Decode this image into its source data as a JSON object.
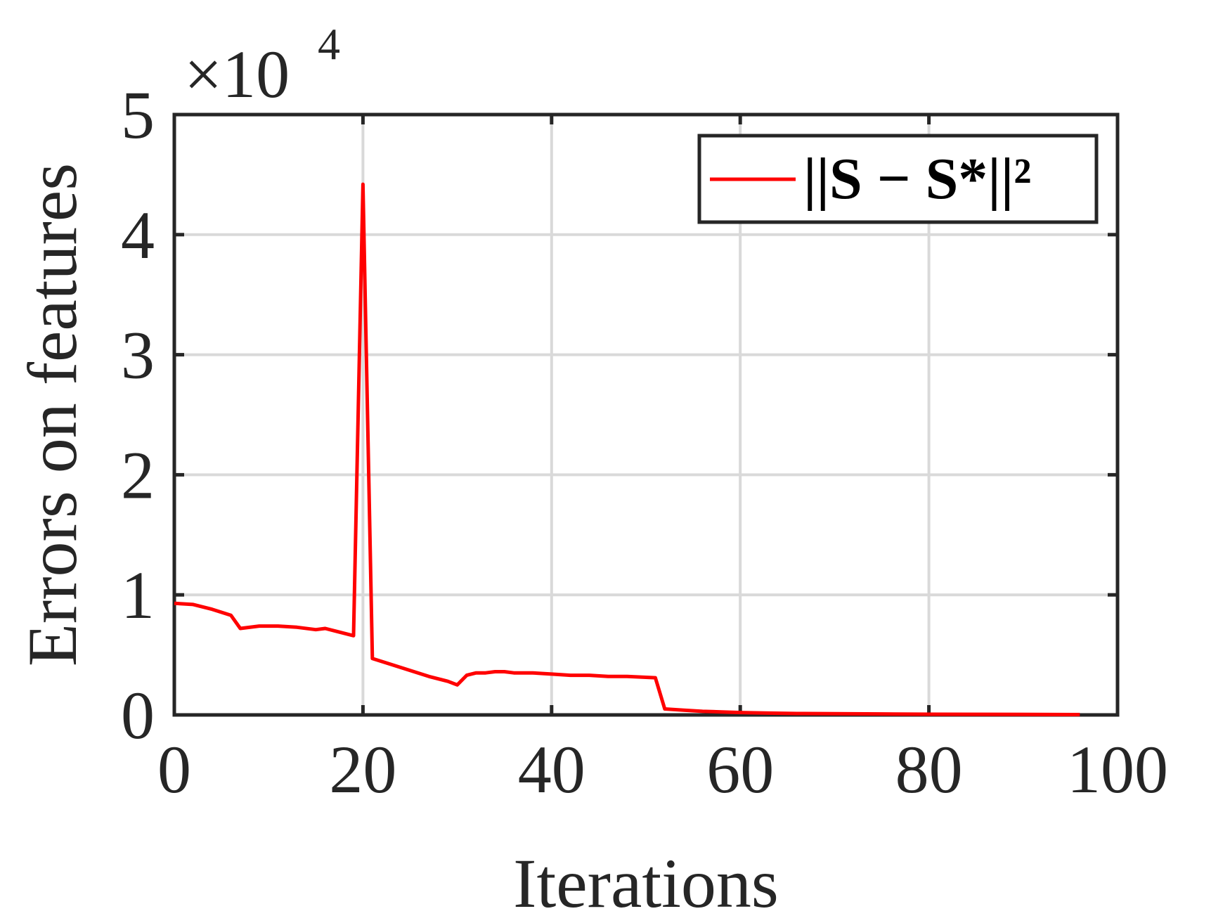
{
  "chart_data": {
    "type": "line",
    "xlabel": "Iterations",
    "ylabel": "Errors on features",
    "y_exponent_label": {
      "base": "×10",
      "exponent": "4"
    },
    "xlim": [
      0,
      100
    ],
    "ylim": [
      0,
      50000
    ],
    "x_ticks": [
      0,
      20,
      40,
      60,
      80,
      100
    ],
    "x_tick_labels": [
      "0",
      "20",
      "40",
      "60",
      "80",
      "100"
    ],
    "y_ticks": [
      0,
      10000,
      20000,
      30000,
      40000,
      50000
    ],
    "y_tick_labels": [
      "0",
      "1",
      "2",
      "3",
      "4",
      "5"
    ],
    "grid": true,
    "legend_position": "top-right",
    "series": [
      {
        "name": "||S − S*||²",
        "color": "#ff0000",
        "x": [
          0,
          2,
          4,
          6,
          7,
          9,
          11,
          13,
          15,
          16,
          17,
          19,
          20,
          21,
          23,
          25,
          27,
          29,
          30,
          31,
          32,
          33,
          34,
          35,
          36,
          38,
          40,
          42,
          44,
          46,
          48,
          51,
          52,
          54,
          56,
          58,
          60,
          63,
          66,
          70,
          75,
          80,
          85,
          90,
          96
        ],
        "y": [
          9300,
          9200,
          8800,
          8300,
          7200,
          7400,
          7400,
          7300,
          7100,
          7200,
          7000,
          6600,
          44200,
          4700,
          4200,
          3700,
          3200,
          2800,
          2500,
          3300,
          3500,
          3500,
          3600,
          3600,
          3500,
          3500,
          3400,
          3300,
          3300,
          3200,
          3200,
          3100,
          500,
          400,
          300,
          250,
          200,
          150,
          120,
          100,
          80,
          60,
          50,
          40,
          30
        ]
      }
    ]
  }
}
